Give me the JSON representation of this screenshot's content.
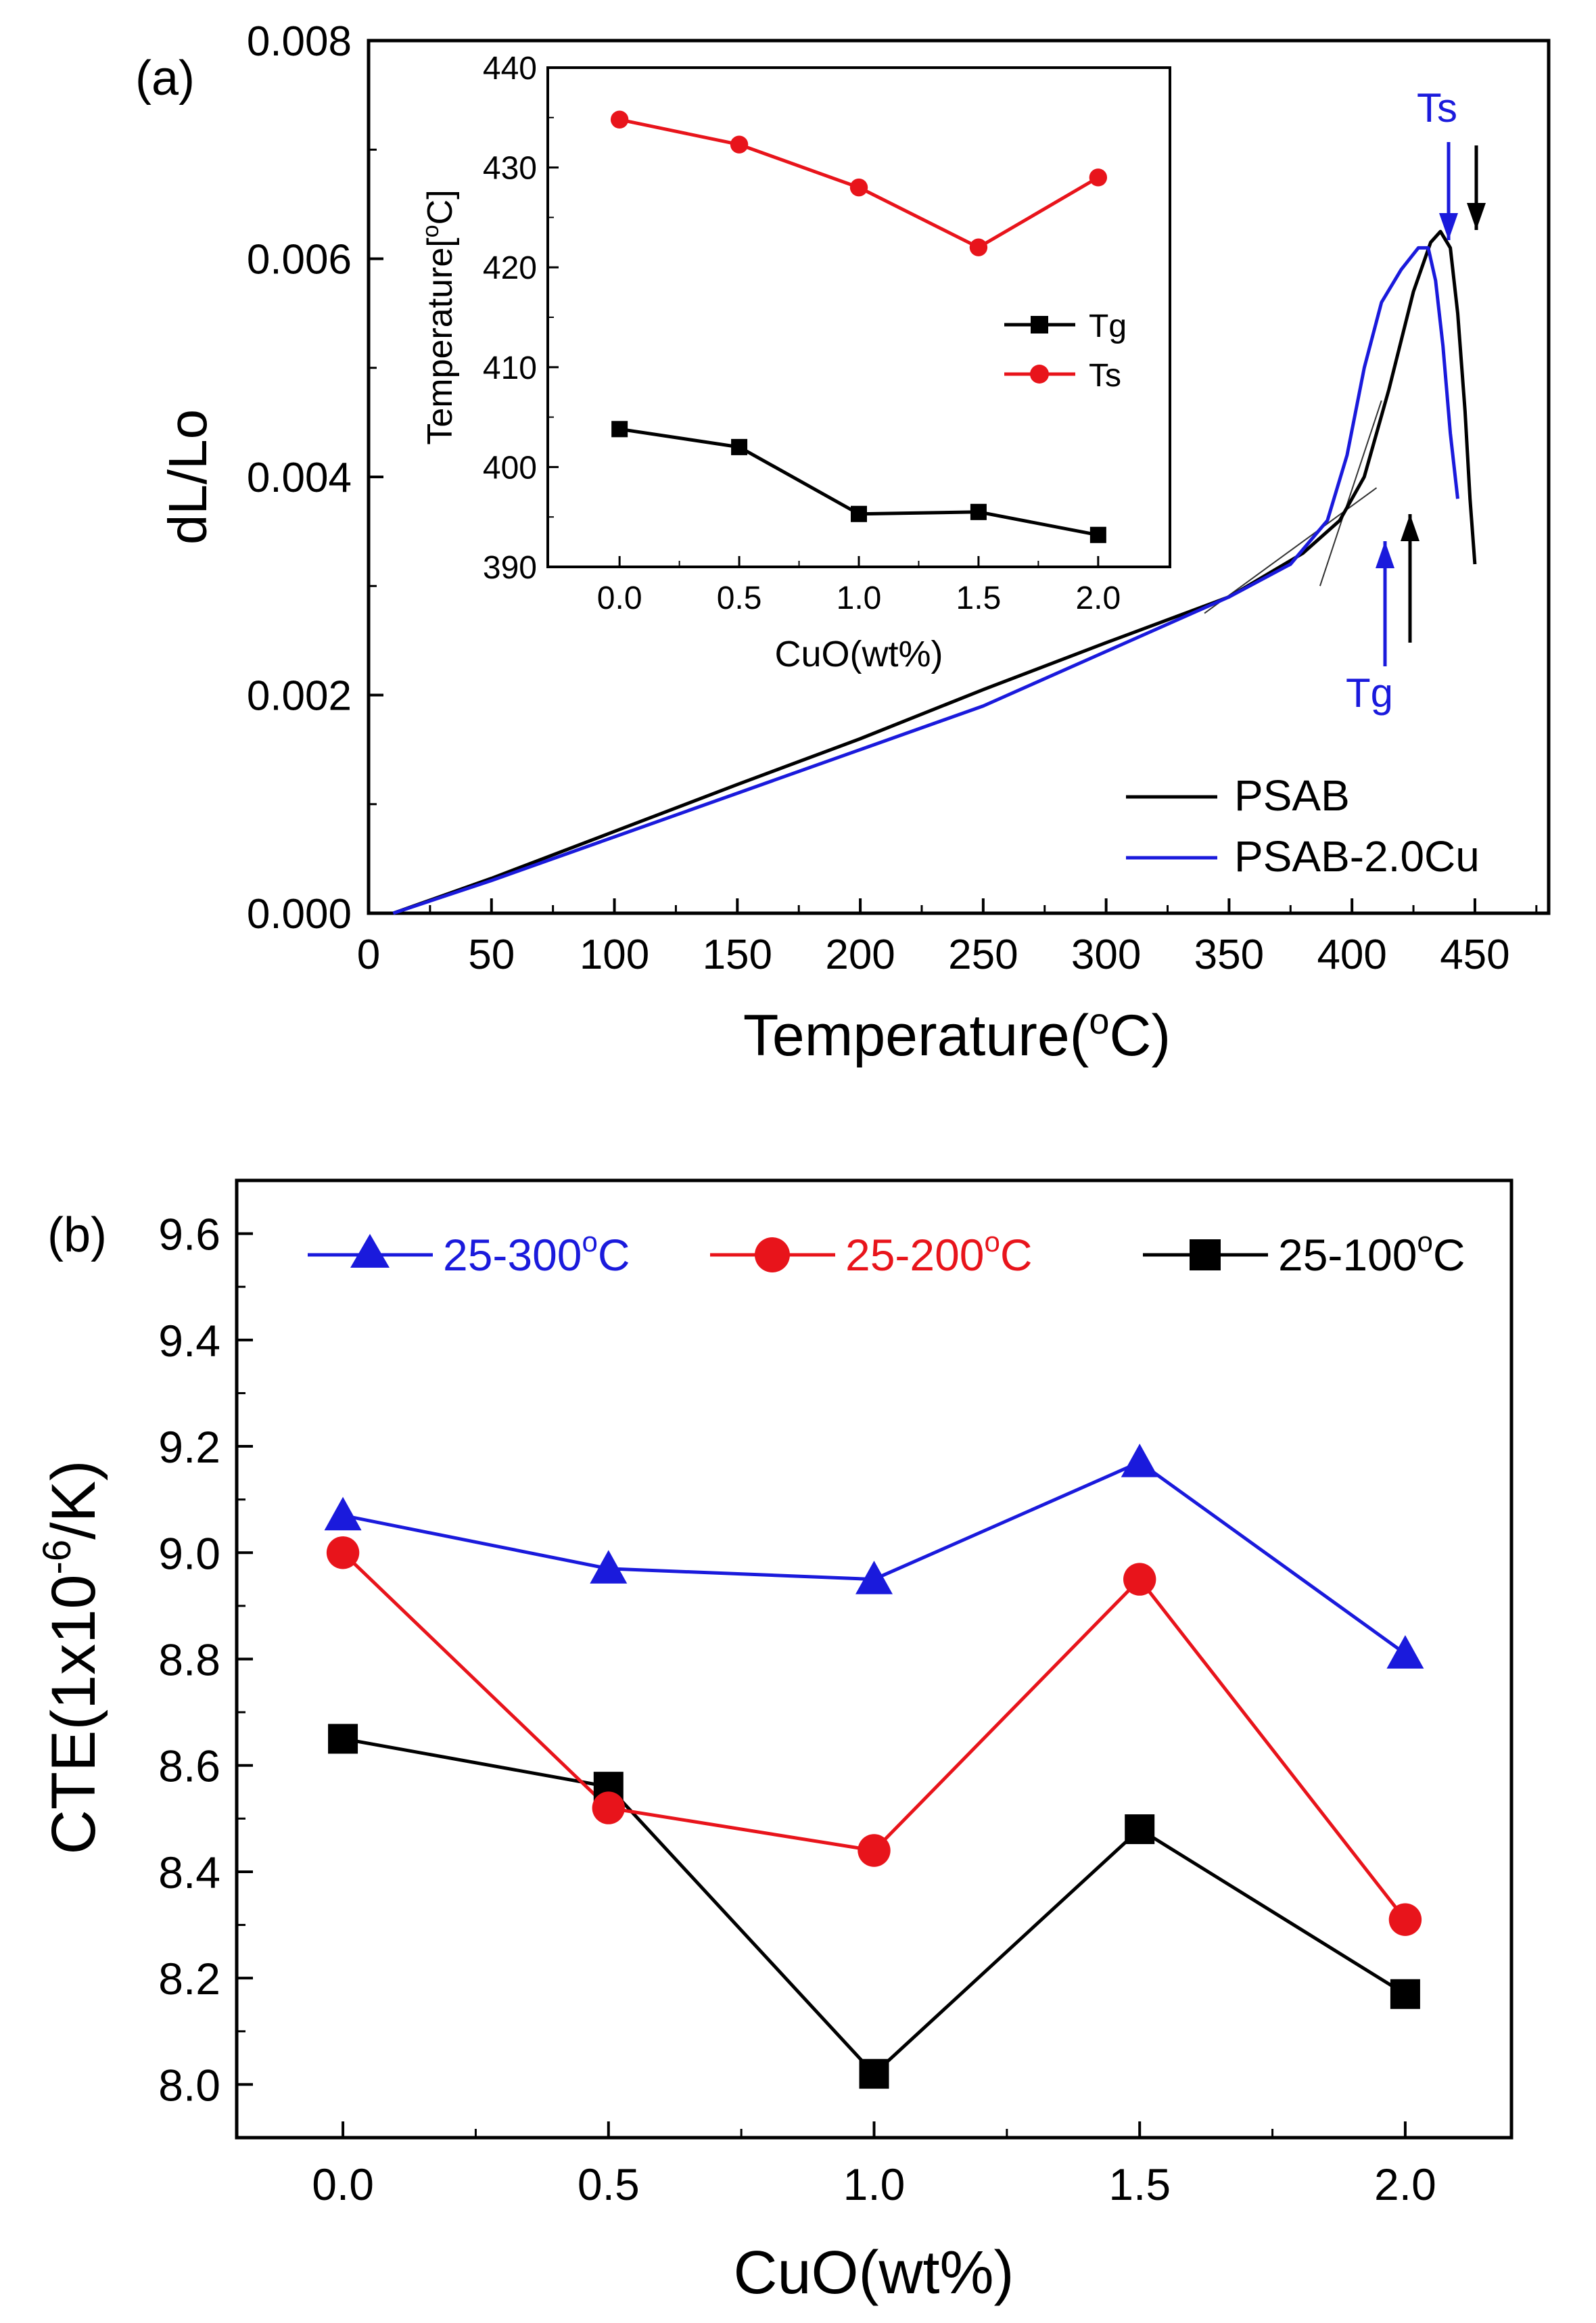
{
  "chart_data": [
    {
      "panel_label": "(a)",
      "type": "line",
      "title": "",
      "xlabel": "Temperature(oC)",
      "xlabel_main": "Temperature(",
      "xlabel_sup": "o",
      "xlabel_tail": "C)",
      "ylabel": "dL/Lo",
      "xlim": [
        0,
        480
      ],
      "ylim": [
        0,
        0.008
      ],
      "xticks": [
        "0",
        "50",
        "100",
        "150",
        "200",
        "250",
        "300",
        "350",
        "400",
        "450"
      ],
      "yticks": [
        "0.000",
        "0.002",
        "0.004",
        "0.006",
        "0.008"
      ],
      "grid": false,
      "legend_position": "bottom-right",
      "series": [
        {
          "name": "PSAB",
          "color": "#000000",
          "x": [
            10,
            50,
            100,
            150,
            200,
            250,
            300,
            350,
            380,
            395,
            405,
            415,
            425,
            432,
            436,
            440,
            443,
            446,
            448,
            450
          ],
          "y": [
            0.0,
            0.00032,
            0.00075,
            0.00118,
            0.0016,
            0.00205,
            0.00248,
            0.0029,
            0.0033,
            0.0036,
            0.004,
            0.0048,
            0.0057,
            0.00615,
            0.00625,
            0.0061,
            0.0055,
            0.0046,
            0.0038,
            0.0032
          ]
        },
        {
          "name": "PSAB-2.0Cu",
          "color": "#1a1adc",
          "x": [
            10,
            50,
            100,
            150,
            200,
            250,
            300,
            350,
            375,
            390,
            398,
            405,
            412,
            420,
            427,
            431,
            434,
            437,
            440,
            443
          ],
          "y": [
            0.0,
            0.0003,
            0.0007,
            0.0011,
            0.0015,
            0.0019,
            0.0024,
            0.0029,
            0.0032,
            0.0036,
            0.0042,
            0.005,
            0.0056,
            0.0059,
            0.0061,
            0.0061,
            0.0058,
            0.0052,
            0.0044,
            0.0038
          ]
        }
      ],
      "annotations": [
        {
          "text": "Ts",
          "color": "#1a1adc"
        },
        {
          "text": "Tg",
          "color": "#1a1adc"
        }
      ],
      "inset": {
        "type": "line",
        "xlabel": "CuO(wt%)",
        "ylabel": "Temperature[oC]",
        "ylabel_main": "Temperature[",
        "ylabel_sup": "o",
        "ylabel_tail": "C]",
        "xlim": [
          -0.3,
          2.3
        ],
        "ylim": [
          390,
          440
        ],
        "xticks": [
          "0.0",
          "0.5",
          "1.0",
          "1.5",
          "2.0"
        ],
        "yticks": [
          "390",
          "400",
          "410",
          "420",
          "430",
          "440"
        ],
        "x": [
          0.0,
          0.5,
          1.0,
          1.5,
          2.0
        ],
        "series": [
          {
            "name": "Tg",
            "color": "#000000",
            "marker": "square",
            "values": [
              403.8,
              402.0,
              395.3,
              395.5,
              393.2
            ]
          },
          {
            "name": "Ts",
            "color": "#e8141b",
            "marker": "circle",
            "values": [
              434.8,
              432.3,
              428.0,
              422.0,
              429.0
            ]
          }
        ]
      }
    },
    {
      "panel_label": "(b)",
      "type": "line",
      "title": "",
      "xlabel": "CuO(wt%)",
      "ylabel": "CTE(1x10-6/K)",
      "ylabel_main": "CTE(1x10",
      "ylabel_sup": "-6",
      "ylabel_tail": "/K)",
      "xlim": [
        -0.2,
        2.2
      ],
      "ylim": [
        7.9,
        9.7
      ],
      "xticks": [
        "0.0",
        "0.5",
        "1.0",
        "1.5",
        "2.0"
      ],
      "yticks": [
        "8.0",
        "8.2",
        "8.4",
        "8.6",
        "8.8",
        "9.0",
        "9.2",
        "9.4",
        "9.6"
      ],
      "grid": false,
      "legend_position": "top",
      "x": [
        0.0,
        0.5,
        1.0,
        1.5,
        2.0
      ],
      "series": [
        {
          "name": "25-300oC",
          "label_main": "25-300",
          "label_sup": "o",
          "label_tail": "C",
          "color": "#1a1adc",
          "marker": "triangle",
          "values": [
            9.07,
            8.97,
            8.95,
            9.17,
            8.81
          ]
        },
        {
          "name": "25-200oC",
          "label_main": "25-200",
          "label_sup": "o",
          "label_tail": "C",
          "color": "#e8141b",
          "marker": "circle",
          "values": [
            9.0,
            8.52,
            8.44,
            8.95,
            8.31
          ]
        },
        {
          "name": "25-100oC",
          "label_main": "25-100",
          "label_sup": "o",
          "label_tail": "C",
          "color": "#000000",
          "marker": "square",
          "values": [
            8.65,
            8.56,
            8.02,
            8.48,
            8.17
          ]
        }
      ]
    }
  ]
}
